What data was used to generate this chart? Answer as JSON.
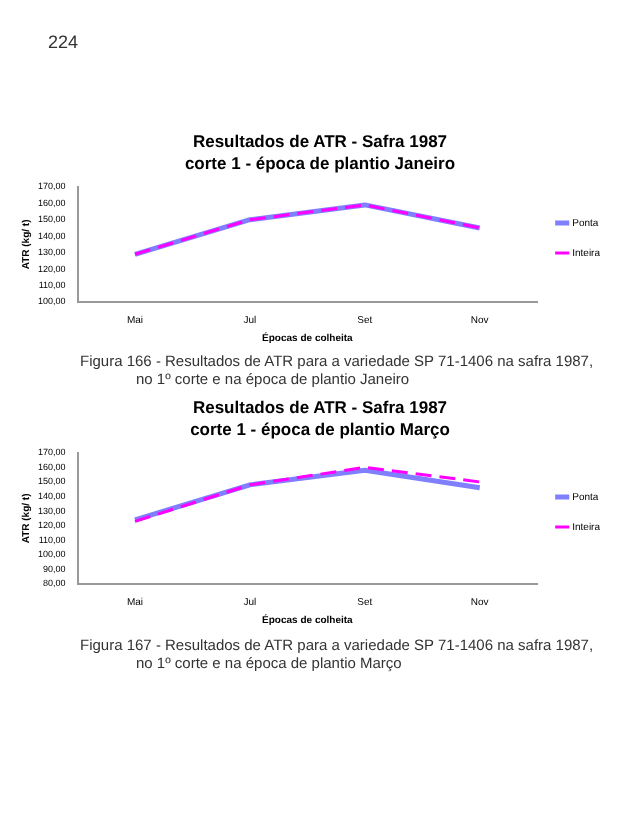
{
  "chart_data": [
    {
      "type": "line",
      "title": "Resultados de ATR - Safra 1987",
      "subtitle": "corte 1 - época de plantio Janeiro",
      "xlabel": "Épocas de colheita",
      "ylabel": "ATR (kg/ t)",
      "categories": [
        "Mai",
        "Jul",
        "Set",
        "Nov"
      ],
      "series": [
        {
          "name": "Ponta",
          "color": "#8080ff",
          "line_style": "solid",
          "values": [
            129,
            150,
            159,
            145
          ]
        },
        {
          "name": "Inteira",
          "color": "#ff00ff",
          "line_style": "dashed",
          "values": [
            129,
            150,
            159,
            145
          ]
        }
      ],
      "ylim": [
        100,
        170
      ],
      "yticks": [
        {
          "value": 100,
          "label": "100,00"
        },
        {
          "value": 110,
          "label": "110,00"
        },
        {
          "value": 120,
          "label": "120,00"
        },
        {
          "value": 130,
          "label": "130,00"
        },
        {
          "value": 140,
          "label": "140,00"
        },
        {
          "value": 150,
          "label": "150,00"
        },
        {
          "value": 160,
          "label": "160,00"
        },
        {
          "value": 170,
          "label": "170,00"
        }
      ],
      "grid": false,
      "legend": "right",
      "marker": "none",
      "annotations": [
        "224",
        "Figura 166 - Resultados de ATR para a variedade SP 71-1406 na safra 1987, no 1º corte e na época de plantio Janeiro"
      ]
    },
    {
      "type": "line",
      "title": "Resultados de ATR - Safra 1987",
      "subtitle": "corte 1 - época de plantio Março",
      "xlabel": "Épocas de colheita",
      "ylabel": "ATR (kg/ t)",
      "categories": [
        "Mai",
        "Jul",
        "Set",
        "Nov"
      ],
      "series": [
        {
          "name": "Ponta",
          "color": "#8080ff",
          "line_style": "solid",
          "values": [
            124,
            148,
            158,
            146
          ]
        },
        {
          "name": "Inteira",
          "color": "#ff00ff",
          "line_style": "dashed",
          "values": [
            123,
            148,
            160,
            150
          ]
        }
      ],
      "ylim": [
        80,
        170
      ],
      "yticks": [
        {
          "value": 80,
          "label": "80,00"
        },
        {
          "value": 90,
          "label": "90,00"
        },
        {
          "value": 100,
          "label": "100,00"
        },
        {
          "value": 110,
          "label": "110,00"
        },
        {
          "value": 120,
          "label": "120,00"
        },
        {
          "value": 130,
          "label": "130,00"
        },
        {
          "value": 140,
          "label": "140,00"
        },
        {
          "value": 150,
          "label": "150,00"
        },
        {
          "value": 160,
          "label": "160,00"
        },
        {
          "value": 170,
          "label": "170,00"
        }
      ],
      "grid": false,
      "legend": "right",
      "marker": "none",
      "annotations": [
        "Figura 167 - Resultados de ATR para a variedade SP 71-1406 na safra 1987, no 1º corte e na época de plantio Março"
      ]
    }
  ]
}
